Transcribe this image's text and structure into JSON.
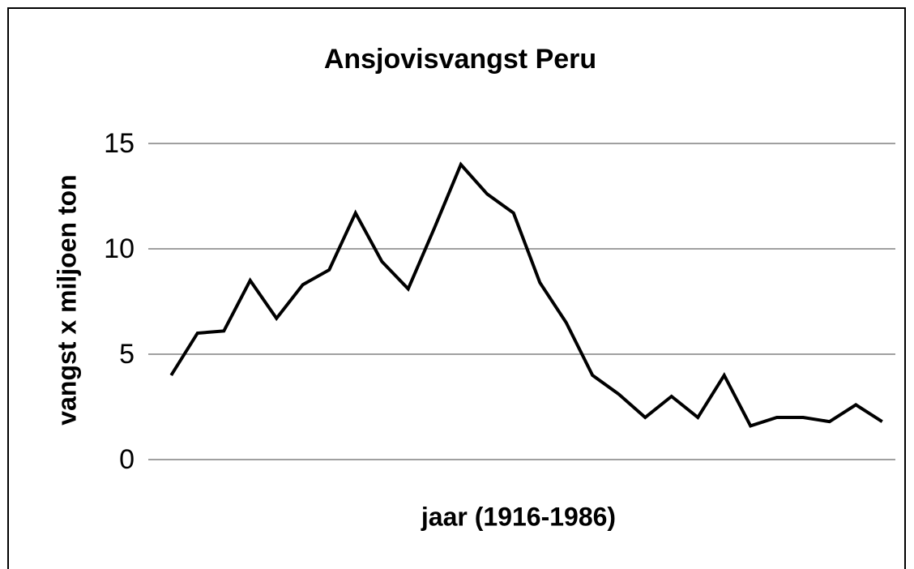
{
  "chart_data": {
    "type": "line",
    "title": "Ansjovisvangst Peru",
    "xlabel": "jaar (1916-1986)",
    "ylabel": "vangst x miljoen ton",
    "categories": [
      null,
      null,
      null,
      null,
      null,
      null,
      null,
      null,
      null,
      null,
      null,
      null,
      null,
      null,
      null,
      null,
      null,
      null,
      null,
      null,
      null,
      null,
      null,
      null,
      null,
      null,
      null,
      null
    ],
    "series": [
      {
        "name": null,
        "color": "#000000",
        "values": [
          4.0,
          6.0,
          6.1,
          8.5,
          6.7,
          8.3,
          9.0,
          11.7,
          9.4,
          8.1,
          11.0,
          14.0,
          12.6,
          11.7,
          8.4,
          6.5,
          4.0,
          3.1,
          2.0,
          3.0,
          2.0,
          4.0,
          1.6,
          2.0,
          2.0,
          1.8,
          2.6,
          1.8
        ]
      }
    ],
    "ylim": [
      0,
      15
    ],
    "yticks": [
      0,
      5,
      10,
      15
    ],
    "grid": true
  }
}
